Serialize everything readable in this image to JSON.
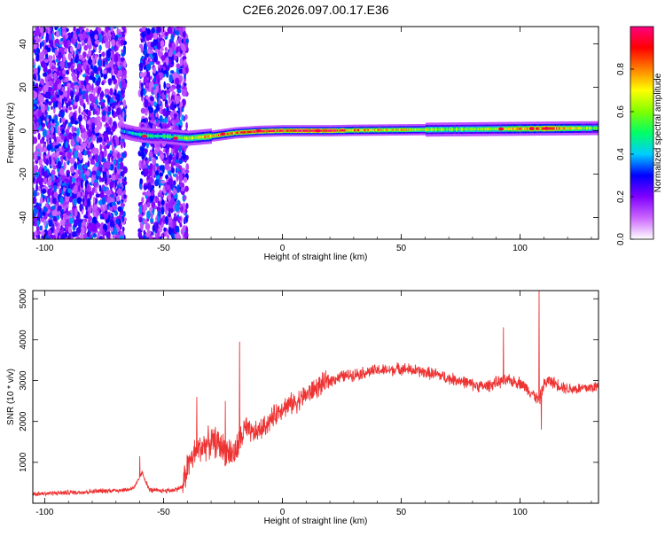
{
  "title": "C2E6.2026.097.00.17.E36",
  "chart_data": [
    {
      "type": "heatmap",
      "xlabel": "Height of straight line (km)",
      "ylabel": "Frequency (Hz)",
      "xlim": [
        -105,
        133
      ],
      "ylim": [
        -50,
        48
      ],
      "xticks": [
        -100,
        -50,
        0,
        50,
        100
      ],
      "xtick_labels": [
        "-100",
        "-50",
        "0",
        "50",
        "100"
      ],
      "yticks": [
        -40,
        -20,
        0,
        20,
        40
      ],
      "ytick_labels": [
        "-40",
        "-20",
        "0",
        "20",
        "40"
      ],
      "colorbar": {
        "label": "Normalized spectral amplitude",
        "range": [
          0,
          1
        ],
        "ticks": [
          0,
          0.2,
          0.4,
          0.6,
          0.8
        ],
        "tick_labels": [
          "0.0",
          "0.2",
          "0.4",
          "0.6",
          "0.8"
        ],
        "colors": [
          "#ffffff",
          "#cc66ff",
          "#8000ff",
          "#0000ff",
          "#00ccff",
          "#00ff66",
          "#80ff00",
          "#ffff00",
          "#ff8000",
          "#ff0000",
          "#ff0080"
        ]
      },
      "noise_regions": [
        {
          "x_range": [
            -105,
            -66
          ],
          "y_range": [
            -50,
            48
          ]
        },
        {
          "x_range": [
            -60,
            -40
          ],
          "y_range": [
            -50,
            48
          ]
        }
      ],
      "signal_ridge": {
        "x": [
          -68,
          -62,
          -55,
          -50,
          -45,
          -40,
          -30,
          -20,
          -10,
          0,
          10,
          20,
          30,
          50,
          70,
          90,
          110,
          133
        ],
        "y": [
          0,
          -1.5,
          -2.5,
          -2.5,
          -3,
          -3.5,
          -2.5,
          -1,
          -0.3,
          0,
          0,
          0,
          0.2,
          0.4,
          0.6,
          0.8,
          1,
          1.2
        ],
        "amplitude": [
          0.35,
          0.45,
          0.5,
          0.5,
          0.55,
          0.65,
          0.75,
          0.85,
          0.9,
          0.9,
          0.95,
          0.95,
          0.8,
          0.7,
          0.6,
          0.65,
          0.85,
          0.55
        ]
      },
      "hot_spots": [
        {
          "x": -58,
          "y": -2.5
        },
        {
          "x": -45,
          "y": -3.5
        },
        {
          "x": -25,
          "y": -1.5
        },
        {
          "x": -10,
          "y": 0
        },
        {
          "x": 15,
          "y": 0
        },
        {
          "x": 92,
          "y": 0.8
        },
        {
          "x": 105,
          "y": 1
        },
        {
          "x": 111,
          "y": 1.1
        }
      ]
    },
    {
      "type": "line",
      "xlabel": "Height of straight line (km)",
      "ylabel": "SNR (10 * v/v)",
      "xlim": [
        -105,
        133
      ],
      "ylim": [
        0,
        5200
      ],
      "xticks": [
        -100,
        -50,
        0,
        50,
        100
      ],
      "xtick_labels": [
        "-100",
        "-50",
        "0",
        "50",
        "100"
      ],
      "yticks": [
        1000,
        2000,
        3000,
        4000,
        5000
      ],
      "ytick_labels": [
        "1000",
        "2000",
        "3000",
        "4000",
        "5000"
      ],
      "series": [
        {
          "color": "#ee3333",
          "x": [
            -105,
            -95,
            -85,
            -75,
            -65,
            -62,
            -59,
            -56,
            -52,
            -46,
            -42,
            -40,
            -36,
            -32,
            -28,
            -24,
            -20,
            -16,
            -12,
            -8,
            -4,
            0,
            5,
            10,
            15,
            20,
            25,
            30,
            35,
            40,
            45,
            50,
            55,
            60,
            65,
            70,
            75,
            80,
            85,
            90,
            95,
            100,
            105,
            108,
            110,
            112,
            116,
            120,
            125,
            133
          ],
          "values": [
            230,
            250,
            270,
            300,
            330,
            400,
            750,
            330,
            300,
            320,
            400,
            900,
            1300,
            1450,
            1500,
            1300,
            1200,
            1800,
            1700,
            1850,
            2100,
            2350,
            2450,
            2650,
            2850,
            3000,
            3100,
            3150,
            3200,
            3250,
            3250,
            3300,
            3250,
            3200,
            3150,
            3050,
            3000,
            2900,
            2850,
            2950,
            3000,
            2950,
            2700,
            2500,
            2900,
            3000,
            2900,
            2800,
            2800,
            2850
          ]
        }
      ],
      "spikes": [
        {
          "x": -60,
          "y": 1150
        },
        {
          "x": -36,
          "y": 2600
        },
        {
          "x": -24,
          "y": 2500
        },
        {
          "x": -18,
          "y": 3950
        },
        {
          "x": 93,
          "y": 4300
        },
        {
          "x": 108,
          "y": 5200
        },
        {
          "x": 109,
          "y": 1800
        }
      ]
    }
  ]
}
